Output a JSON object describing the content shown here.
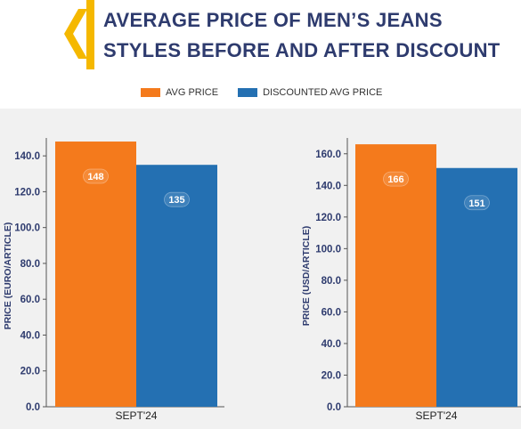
{
  "title": {
    "line1": "AVERAGE PRICE OF MEN’S JEANS",
    "line2": "STYLES BEFORE AND AFTER DISCOUNT"
  },
  "colors": {
    "accent": "#f5b800",
    "title": "#2e3b6e",
    "avg": "#f47a1c",
    "discounted": "#2470b2"
  },
  "legend": [
    {
      "label": "AVG PRICE",
      "color": "#f47a1c"
    },
    {
      "label": "DISCOUNTED AVG PRICE",
      "color": "#2470b2"
    }
  ],
  "chart_data": [
    {
      "type": "bar",
      "title": "",
      "categories": [
        "SEPT'24"
      ],
      "series": [
        {
          "name": "AVG PRICE",
          "values": [
            148
          ]
        },
        {
          "name": "DISCOUNTED AVG PRICE",
          "values": [
            135
          ]
        }
      ],
      "xlabel": "",
      "ylabel": "PRICE (EURO/ARTICLE)",
      "ylim": [
        0,
        150
      ],
      "yticks": [
        "0.0",
        "20.0",
        "40.0",
        "60.0",
        "80.0",
        "100.0",
        "120.0",
        "140.0"
      ],
      "grid": false
    },
    {
      "type": "bar",
      "title": "",
      "categories": [
        "SEPT'24"
      ],
      "series": [
        {
          "name": "AVG PRICE",
          "values": [
            166
          ]
        },
        {
          "name": "DISCOUNTED AVG PRICE",
          "values": [
            151
          ]
        }
      ],
      "xlabel": "",
      "ylabel": "PRICE (USD/ARTICLE)",
      "ylim": [
        0,
        170
      ],
      "yticks": [
        "0.0",
        "20.0",
        "40.0",
        "60.0",
        "80.0",
        "100.0",
        "120.0",
        "140.0",
        "160.0"
      ],
      "grid": false
    }
  ]
}
